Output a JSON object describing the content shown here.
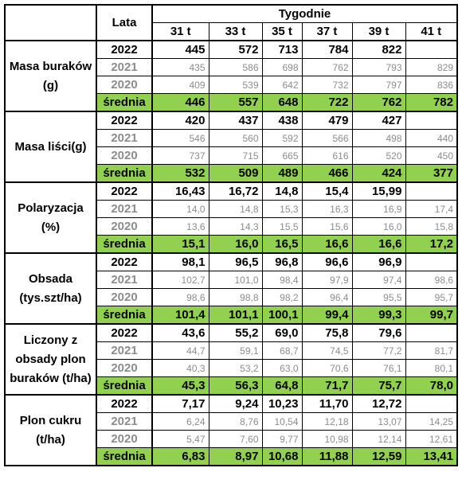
{
  "header": {
    "lata": "Lata",
    "tygodnie": "Tygodnie",
    "weeks": [
      "31 t",
      "33 t",
      "35 t",
      "37 t",
      "39 t",
      "41 t"
    ]
  },
  "sections": [
    {
      "name": "Masa buraków (g)",
      "rows": [
        {
          "year": "2022",
          "values": [
            "445",
            "572",
            "713",
            "784",
            "822",
            ""
          ]
        },
        {
          "year": "2021",
          "values": [
            "435",
            "586",
            "698",
            "762",
            "793",
            "829"
          ]
        },
        {
          "year": "2020",
          "values": [
            "409",
            "539",
            "642",
            "732",
            "797",
            "836"
          ]
        },
        {
          "year": "średnia",
          "values": [
            "446",
            "557",
            "648",
            "722",
            "762",
            "782"
          ]
        }
      ]
    },
    {
      "name": "Masa liści(g)",
      "rows": [
        {
          "year": "2022",
          "values": [
            "420",
            "437",
            "438",
            "479",
            "427",
            ""
          ]
        },
        {
          "year": "2021",
          "values": [
            "546",
            "560",
            "592",
            "566",
            "498",
            "440"
          ]
        },
        {
          "year": "2020",
          "values": [
            "737",
            "715",
            "665",
            "616",
            "520",
            "450"
          ]
        },
        {
          "year": "średnia",
          "values": [
            "532",
            "509",
            "489",
            "466",
            "424",
            "377"
          ]
        }
      ]
    },
    {
      "name": "Polaryzacja (%)",
      "rows": [
        {
          "year": "2022",
          "values": [
            "16,43",
            "16,72",
            "14,8",
            "15,4",
            "15,99",
            ""
          ]
        },
        {
          "year": "2021",
          "values": [
            "14,0",
            "14,8",
            "15,3",
            "16,3",
            "16,9",
            "17,4"
          ]
        },
        {
          "year": "2020",
          "values": [
            "13,6",
            "14,3",
            "15,5",
            "15,6",
            "16,0",
            "15,8"
          ]
        },
        {
          "year": "średnia",
          "values": [
            "15,1",
            "16,0",
            "16,5",
            "16,6",
            "16,6",
            "17,2"
          ]
        }
      ]
    },
    {
      "name": "Obsada (tys.szt/ha)",
      "rows": [
        {
          "year": "2022",
          "values": [
            "98,1",
            "96,5",
            "96,8",
            "96,6",
            "96,9",
            ""
          ]
        },
        {
          "year": "2021",
          "values": [
            "102,7",
            "101,0",
            "98,4",
            "97,9",
            "97,4",
            "98,6"
          ]
        },
        {
          "year": "2020",
          "values": [
            "98,6",
            "98,8",
            "98,2",
            "96,4",
            "95,5",
            "95,7"
          ]
        },
        {
          "year": "średnia",
          "values": [
            "101,4",
            "101,1",
            "100,1",
            "99,4",
            "99,3",
            "99,7"
          ]
        }
      ]
    },
    {
      "name": "Liczony z obsady plon buraków (t/ha)",
      "rows": [
        {
          "year": "2022",
          "values": [
            "43,6",
            "55,2",
            "69,0",
            "75,8",
            "79,6",
            ""
          ]
        },
        {
          "year": "2021",
          "values": [
            "44,7",
            "59,1",
            "68,7",
            "74,5",
            "77,2",
            "81,7"
          ]
        },
        {
          "year": "2020",
          "values": [
            "40,3",
            "53,2",
            "63,0",
            "70,6",
            "76,1",
            "80,1"
          ]
        },
        {
          "year": "średnia",
          "values": [
            "45,3",
            "56,3",
            "64,8",
            "71,7",
            "75,7",
            "78,0"
          ]
        }
      ]
    },
    {
      "name": "Plon cukru (t/ha)",
      "rows": [
        {
          "year": "2022",
          "values": [
            "7,17",
            "9,24",
            "10,23",
            "11,70",
            "12,72",
            ""
          ]
        },
        {
          "year": "2021",
          "values": [
            "6,24",
            "8,76",
            "10,54",
            "12,18",
            "13,07",
            "14,25"
          ]
        },
        {
          "year": "2020",
          "values": [
            "5,47",
            "7,60",
            "9,77",
            "10,98",
            "12,14",
            "12,61"
          ]
        },
        {
          "year": "średnia",
          "values": [
            "6,83",
            "8,97",
            "10,68",
            "11,88",
            "12,59",
            "13,41"
          ]
        }
      ]
    }
  ]
}
